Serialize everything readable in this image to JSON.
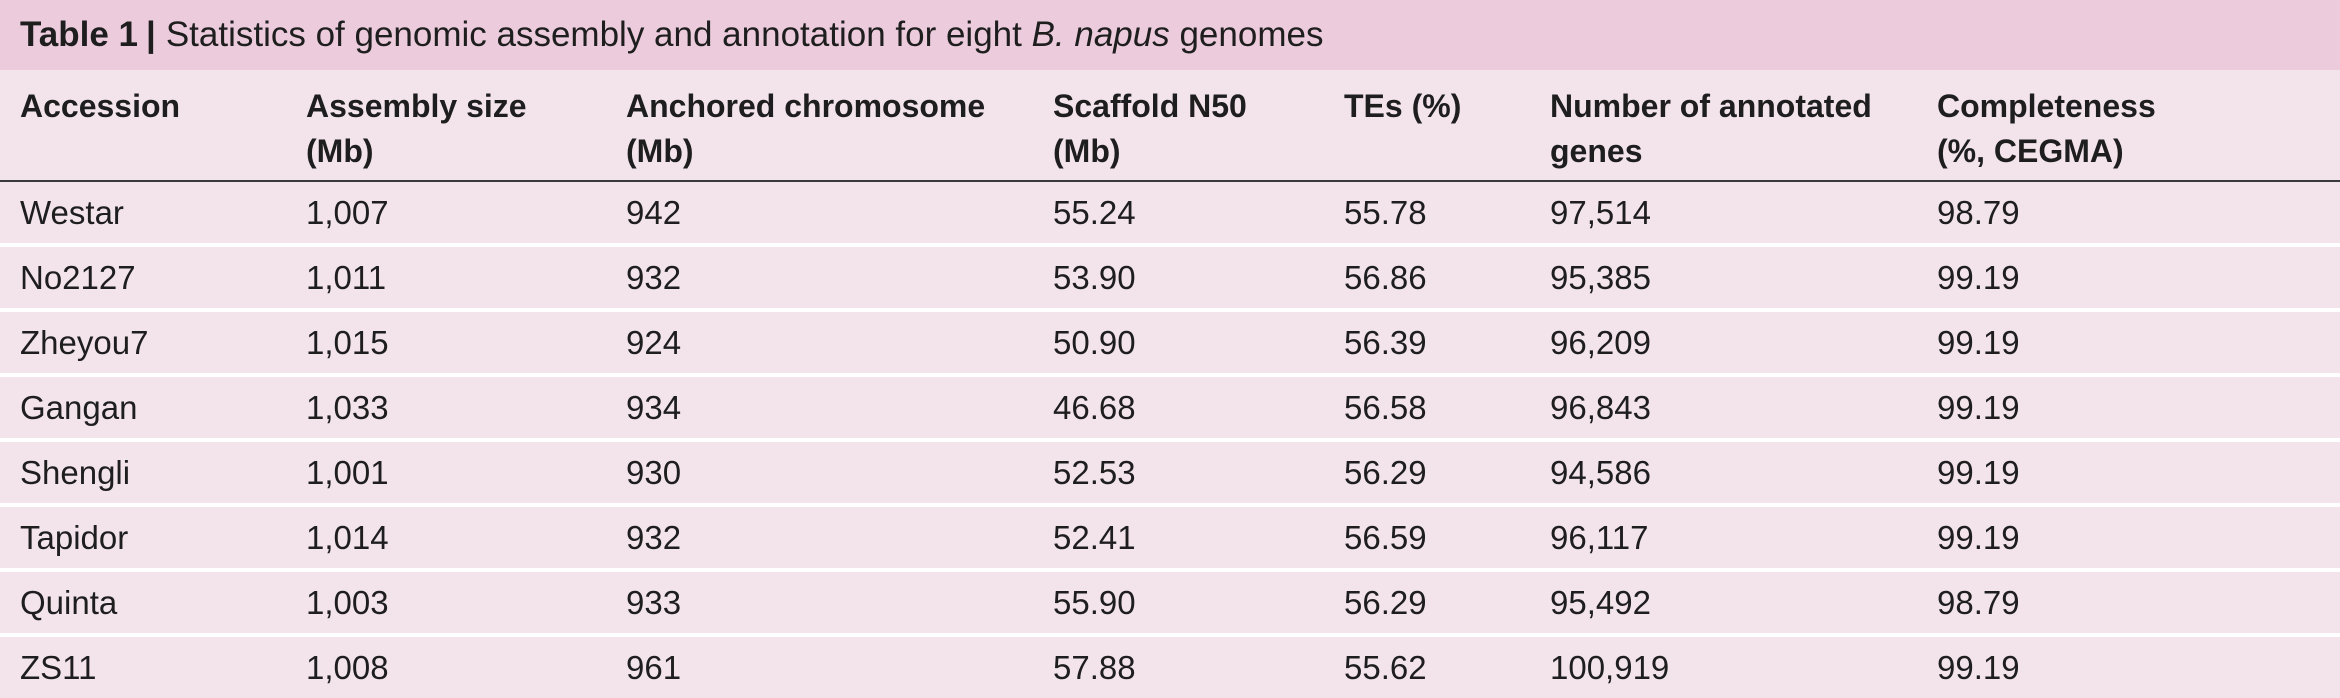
{
  "caption": {
    "label": "Table 1",
    "separator": "|",
    "text_before": "Statistics of genomic assembly and annotation for eight",
    "species": "B. napus",
    "text_after": "genomes"
  },
  "columns": [
    {
      "line1": "Accession",
      "line2": ""
    },
    {
      "line1": "Assembly size",
      "line2": "(Mb)"
    },
    {
      "line1": "Anchored chromosome",
      "line2": "(Mb)"
    },
    {
      "line1": "Scaffold N50",
      "line2": "(Mb)"
    },
    {
      "line1": "TEs (%)",
      "line2": ""
    },
    {
      "line1": "Number of annotated",
      "line2": "genes"
    },
    {
      "line1": "Completeness",
      "line2": "(%, CEGMA)"
    }
  ],
  "rows": [
    [
      "Westar",
      "1,007",
      "942",
      "55.24",
      "55.78",
      "97,514",
      "98.79"
    ],
    [
      "No2127",
      "1,011",
      "932",
      "53.90",
      "56.86",
      "95,385",
      "99.19"
    ],
    [
      "Zheyou7",
      "1,015",
      "924",
      "50.90",
      "56.39",
      "96,209",
      "99.19"
    ],
    [
      "Gangan",
      "1,033",
      "934",
      "46.68",
      "56.58",
      "96,843",
      "99.19"
    ],
    [
      "Shengli",
      "1,001",
      "930",
      "52.53",
      "56.29",
      "94,586",
      "99.19"
    ],
    [
      "Tapidor",
      "1,014",
      "932",
      "52.41",
      "56.59",
      "96,117",
      "99.19"
    ],
    [
      "Quinta",
      "1,003",
      "933",
      "55.90",
      "56.29",
      "95,492",
      "98.79"
    ],
    [
      "ZS11",
      "1,008",
      "961",
      "57.88",
      "55.62",
      "100,919",
      "99.19"
    ]
  ],
  "colors": {
    "caption_background": "#ebcbdc",
    "table_background": "#f3e4ec",
    "row_separator": "#ffffff",
    "header_rule": "#3a3a3a",
    "text": "#1e1e1e"
  }
}
